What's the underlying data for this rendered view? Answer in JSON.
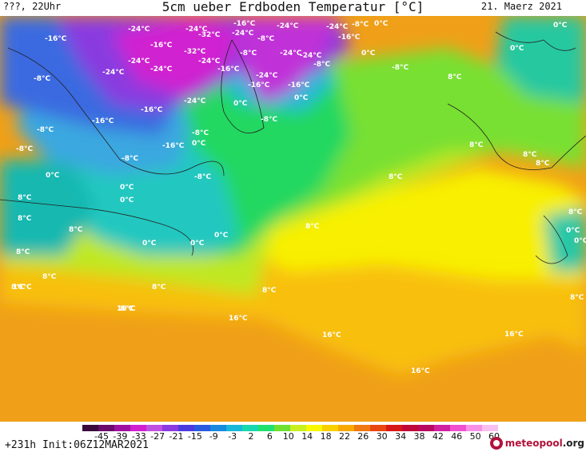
{
  "header": {
    "left": "???, 22Uhr",
    "title": "5cm ueber Erdboden Temperatur [°C]",
    "right": "21. Maerz 2021"
  },
  "footer": {
    "run_info": "+231h Init:06Z12MAR2021",
    "logo_main": "meteopool",
    "logo_suffix": ".org"
  },
  "legend": {
    "ticks": [
      "-45",
      "-39",
      "-33",
      "-27",
      "-21",
      "-15",
      "-9",
      "-3",
      "2",
      "6",
      "10",
      "14",
      "18",
      "22",
      "26",
      "30",
      "34",
      "38",
      "42",
      "46",
      "50",
      "60"
    ],
    "colors": [
      "#3a0a3a",
      "#6a0a6a",
      "#a010a0",
      "#d020d0",
      "#c050e0",
      "#8a3ae0",
      "#4a3ae0",
      "#2a5ae0",
      "#1a8ae0",
      "#18b8d8",
      "#18d8b0",
      "#20e070",
      "#70e030",
      "#c8f020",
      "#f8f800",
      "#f8d000",
      "#f8a800",
      "#f07810",
      "#e84810",
      "#d81818",
      "#c00838",
      "#b80860",
      "#d020a0",
      "#f050d0",
      "#f890e8",
      "#f8c0f0"
    ]
  },
  "labels": [
    "-24°C",
    "-24°C",
    "-16°C",
    "-24°C",
    "-16°C",
    "-24°C",
    "-8°C",
    "-32°C",
    "-16°C",
    "-24°C",
    "-8°C",
    "-24°C",
    "-16°C",
    "-24°C",
    "-8°C",
    "-24°C",
    "-32°C",
    "-24°C",
    "-8°C",
    "-24°C",
    "-24°C",
    "-16°C",
    "-8°C",
    "-8°C",
    "-16°C",
    "-16°C",
    "-24°C",
    "-8°C",
    "-16°C",
    "-16°C",
    "-8°C",
    "-24°C",
    "-8°C",
    "-16°C",
    "-8°C",
    "-8°C",
    "-8°C",
    "0°C",
    "0°C",
    "0°C",
    "0°C",
    "0°C",
    "0°C",
    "0°C",
    "0°C",
    "0°C",
    "0°C",
    "0°C",
    "0°C",
    "0°C",
    "0°C",
    "0°C",
    "8°C",
    "8°C",
    "8°C",
    "8°C",
    "8°C",
    "8°C",
    "8°C",
    "8°C",
    "8°C",
    "8°C",
    "8°C",
    "8°C",
    "8°C",
    "8°C",
    "8°C",
    "8°C",
    "8°C",
    "16°C",
    "16°C",
    "16°C",
    "16°C",
    "16°C",
    "16°C"
  ]
}
